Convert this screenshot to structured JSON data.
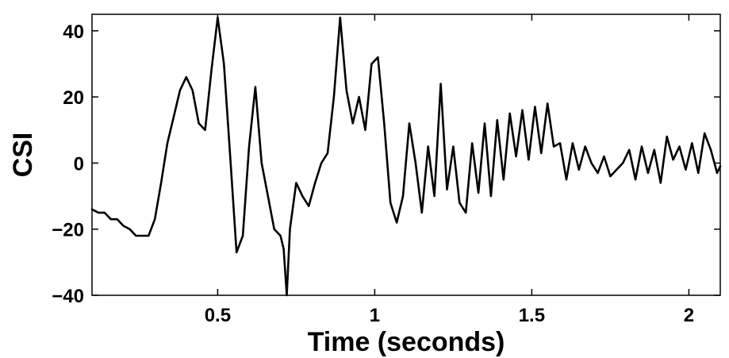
{
  "chart_data": {
    "type": "line",
    "title": "",
    "xlabel": "Time (seconds)",
    "ylabel": "CSI",
    "xlim": [
      0.1,
      2.1
    ],
    "ylim": [
      -40,
      45
    ],
    "xticks": [
      0.5,
      1,
      1.5,
      2
    ],
    "xtick_labels": [
      "0.5",
      "1",
      "1.5",
      "2"
    ],
    "yticks": [
      -40,
      -20,
      0,
      20,
      40
    ],
    "ytick_labels": [
      "−40",
      "−20",
      "0",
      "20",
      "40"
    ],
    "grid": false,
    "legend": "none",
    "line_color": "#000000",
    "series": [
      {
        "x": [
          0.1,
          0.12,
          0.14,
          0.16,
          0.18,
          0.2,
          0.22,
          0.24,
          0.26,
          0.28,
          0.3,
          0.32,
          0.34,
          0.36,
          0.38,
          0.4,
          0.42,
          0.44,
          0.46,
          0.48,
          0.5,
          0.52,
          0.54,
          0.56,
          0.58,
          0.6,
          0.62,
          0.64,
          0.66,
          0.68,
          0.7,
          0.71,
          0.72,
          0.73,
          0.75,
          0.77,
          0.79,
          0.81,
          0.83,
          0.85,
          0.87,
          0.89,
          0.91,
          0.93,
          0.95,
          0.97,
          0.99,
          1.01,
          1.03,
          1.05,
          1.07,
          1.09,
          1.11,
          1.13,
          1.15,
          1.17,
          1.19,
          1.21,
          1.23,
          1.25,
          1.27,
          1.29,
          1.31,
          1.33,
          1.35,
          1.37,
          1.39,
          1.41,
          1.43,
          1.45,
          1.47,
          1.49,
          1.51,
          1.53,
          1.55,
          1.57,
          1.59,
          1.61,
          1.63,
          1.65,
          1.67,
          1.69,
          1.71,
          1.73,
          1.75,
          1.77,
          1.79,
          1.81,
          1.83,
          1.85,
          1.87,
          1.89,
          1.91,
          1.93,
          1.95,
          1.97,
          1.99,
          2.01,
          2.03,
          2.05,
          2.07,
          2.09,
          2.1
        ],
        "y": [
          -14,
          -15,
          -15,
          -17,
          -17,
          -19,
          -20,
          -22,
          -22,
          -22,
          -17,
          -6,
          6,
          14,
          22,
          26,
          22,
          12,
          10,
          28,
          44,
          30,
          2,
          -27,
          -22,
          5,
          23,
          0,
          -10,
          -20,
          -22,
          -26,
          -40,
          -20,
          -6,
          -10,
          -13,
          -6,
          0,
          3,
          20,
          44,
          22,
          12,
          20,
          10,
          30,
          32,
          12,
          -12,
          -18,
          -10,
          12,
          0,
          -15,
          5,
          -10,
          24,
          -8,
          5,
          -12,
          -15,
          6,
          -9,
          12,
          -10,
          13,
          -5,
          15,
          2,
          16,
          1,
          17,
          3,
          18,
          5,
          6,
          -5,
          6,
          -2,
          5,
          0,
          -3,
          2,
          -4,
          -2,
          0,
          4,
          -5,
          5,
          -3,
          4,
          -6,
          8,
          1,
          5,
          -2,
          6,
          -3,
          9,
          4,
          -3,
          -1
        ]
      }
    ]
  }
}
